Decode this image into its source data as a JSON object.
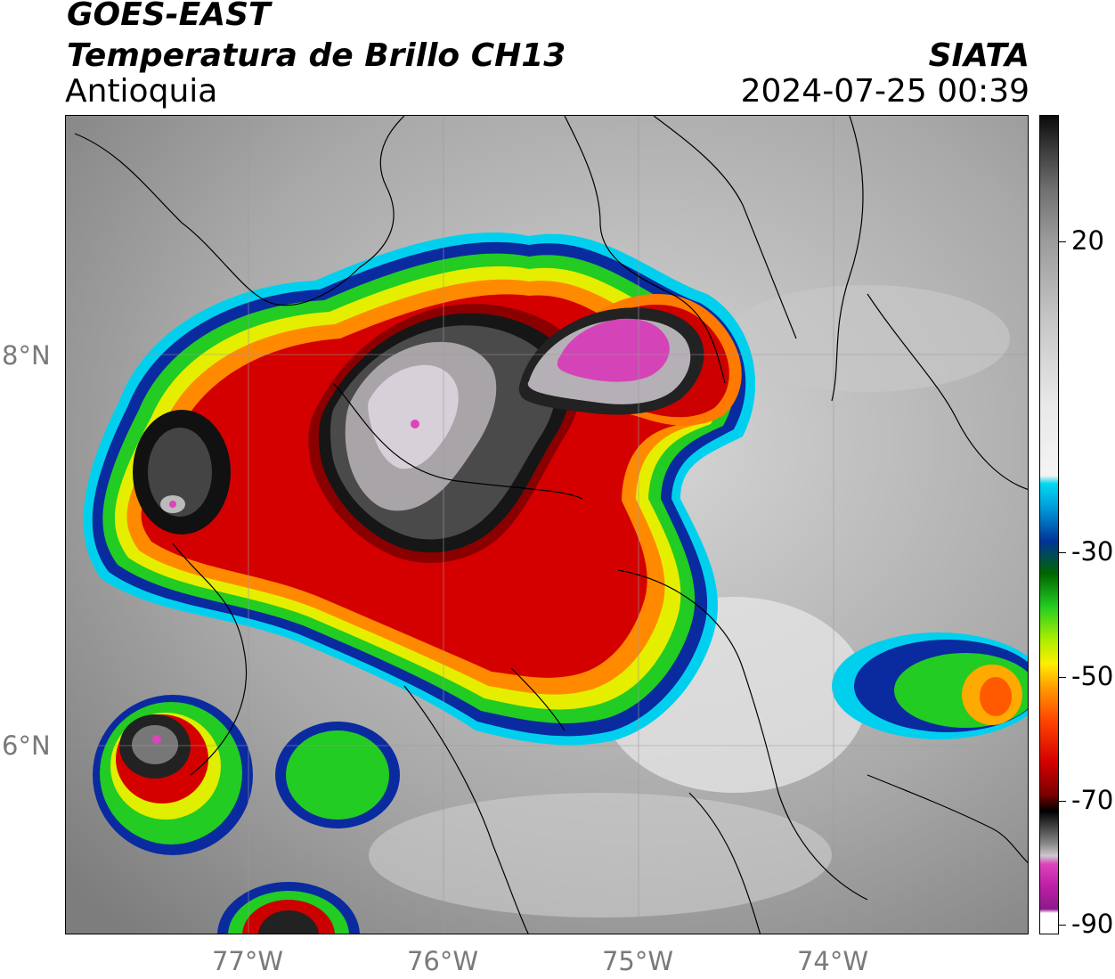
{
  "header": {
    "satellite": "GOES-EAST",
    "product": "Temperatura de Brillo CH13",
    "region": "Antioquia",
    "source": "SIATA",
    "datetime": "2024-07-25 00:39"
  },
  "axes": {
    "lat_ticks": [
      "8°N",
      "6°N"
    ],
    "lon_ticks": [
      "77°W",
      "76°W",
      "75°W",
      "74°W"
    ]
  },
  "colorbar": {
    "labels": [
      "20",
      "-30",
      "-50",
      "-70",
      "-90"
    ],
    "colors": {
      "warm": "#f0f0f0",
      "cyan": "#00d8f0",
      "blue": "#003399",
      "green": "#22cc22",
      "yellow": "#ffee00",
      "orange": "#ff8800",
      "red": "#dd0000",
      "black": "#111111",
      "gray": "#bbbbbb",
      "magenta": "#dd44bb"
    }
  }
}
